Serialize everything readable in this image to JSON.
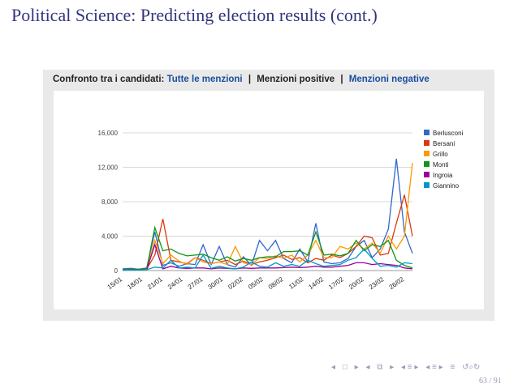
{
  "slide": {
    "title": "Political Science: Predicting election results (cont.)",
    "page": "63 / 91"
  },
  "panel": {
    "prefix": "Confronto tra i candidati:",
    "link_all": "Tutte le menzioni",
    "separator": "|",
    "link_positive": "Menzioni positive",
    "link_negative": "Menzioni negative"
  },
  "nav_icons": [
    "nav-frame-left-icon",
    "nav-frame-right-icon",
    "nav-subsection-icon",
    "nav-section-left-icon",
    "nav-section-right-icon",
    "nav-align-icon",
    "nav-search-icon"
  ],
  "chart_data": {
    "type": "line",
    "title": "",
    "xlabel": "",
    "ylabel": "",
    "ylim": [
      0,
      16000
    ],
    "yticks": [
      "0",
      "4,000",
      "8,000",
      "12,000",
      "16,000"
    ],
    "grid": true,
    "legend_position": "right",
    "x_tick_labels": [
      "15/01",
      "18/01",
      "21/01",
      "24/01",
      "27/01",
      "30/01",
      "02/02",
      "05/02",
      "08/02",
      "11/02",
      "14/02",
      "17/02",
      "20/02",
      "23/02",
      "26/02"
    ],
    "x_start_label": "15/01",
    "series": [
      {
        "name": "Berlusconi",
        "color": "#3366cc",
        "values": [
          200,
          250,
          150,
          300,
          4500,
          600,
          900,
          500,
          800,
          700,
          3000,
          700,
          2800,
          700,
          400,
          1600,
          600,
          3500,
          2300,
          3500,
          1400,
          900,
          2500,
          1000,
          5500,
          1000,
          800,
          900,
          1400,
          2800,
          3500,
          1500,
          2500,
          4800,
          13000,
          4500,
          2000
        ]
      },
      {
        "name": "Bersani",
        "color": "#dc3912",
        "values": [
          100,
          200,
          150,
          200,
          1800,
          6000,
          1200,
          1000,
          800,
          1500,
          1200,
          800,
          1000,
          1200,
          700,
          1100,
          700,
          1000,
          1200,
          1500,
          1800,
          1300,
          1500,
          900,
          1400,
          1200,
          1800,
          1500,
          2000,
          2800,
          4000,
          3800,
          1800,
          2000,
          5500,
          8800,
          4000
        ]
      },
      {
        "name": "Grillo",
        "color": "#ff9900",
        "values": [
          100,
          150,
          100,
          150,
          3500,
          800,
          1800,
          1100,
          700,
          1500,
          1000,
          800,
          1000,
          700,
          2800,
          900,
          700,
          1500,
          1400,
          1700,
          1400,
          1800,
          1000,
          1800,
          3500,
          1500,
          1500,
          2800,
          2500,
          3200,
          2500,
          3200,
          2000,
          4000,
          2500,
          4000,
          12500
        ]
      },
      {
        "name": "Monti",
        "color": "#109618",
        "values": [
          100,
          200,
          150,
          250,
          5000,
          2300,
          2500,
          2000,
          1700,
          1800,
          1900,
          1500,
          1200,
          1600,
          1100,
          1400,
          1200,
          1500,
          1600,
          1600,
          2200,
          2200,
          2300,
          1800,
          4500,
          1800,
          1900,
          1700,
          2000,
          3500,
          2300,
          3000,
          2800,
          3500,
          1200,
          600,
          300
        ]
      },
      {
        "name": "Ingroia",
        "color": "#990099",
        "values": [
          50,
          100,
          80,
          100,
          3000,
          200,
          500,
          300,
          250,
          300,
          300,
          200,
          300,
          250,
          200,
          300,
          250,
          300,
          300,
          300,
          350,
          400,
          350,
          400,
          500,
          400,
          400,
          500,
          600,
          900,
          900,
          700,
          800,
          700,
          600,
          300,
          200
        ]
      },
      {
        "name": "Giannino",
        "color": "#0099c6",
        "values": [
          50,
          80,
          60,
          100,
          400,
          300,
          1200,
          300,
          400,
          300,
          1800,
          250,
          500,
          300,
          200,
          400,
          1000,
          500,
          400,
          900,
          500,
          700,
          500,
          1200,
          800,
          500,
          600,
          700,
          1200,
          1500,
          2500,
          1400,
          500,
          600,
          400,
          900,
          800
        ]
      }
    ]
  }
}
